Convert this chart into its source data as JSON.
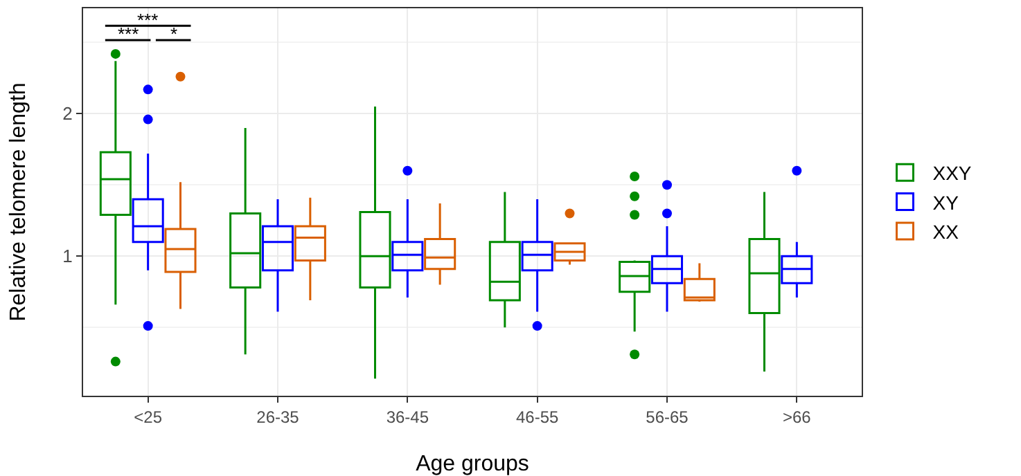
{
  "chart_data": {
    "type": "box",
    "xlabel": "Age groups",
    "ylabel": "Relative telomere length",
    "categories": [
      "<25",
      "26-35",
      "36-45",
      "46-55",
      "56-65",
      ">66"
    ],
    "ylim": [
      0.02,
      2.74
    ],
    "yticks": [
      1,
      2
    ],
    "grid": true,
    "legend": "right",
    "annotations": [
      "***",
      "***",
      "*"
    ],
    "series": [
      {
        "name": "XXY",
        "color": "#008b00",
        "boxes": [
          {
            "low": 0.66,
            "q1": 1.29,
            "median": 1.54,
            "q3": 1.73,
            "high": 2.37,
            "outliers": [
              2.42,
              0.26
            ]
          },
          {
            "low": 0.31,
            "q1": 0.78,
            "median": 1.02,
            "q3": 1.3,
            "high": 1.9
          },
          {
            "low": 0.14,
            "q1": 0.78,
            "median": 1.0,
            "q3": 1.31,
            "high": 2.05
          },
          {
            "low": 0.5,
            "q1": 0.69,
            "median": 0.82,
            "q3": 1.1,
            "high": 1.45
          },
          {
            "low": 0.47,
            "q1": 0.75,
            "median": 0.86,
            "q3": 0.96,
            "high": 0.97,
            "outliers": [
              1.56,
              1.42,
              1.29,
              0.31
            ]
          },
          {
            "low": 0.19,
            "q1": 0.6,
            "median": 0.88,
            "q3": 1.12,
            "high": 1.45
          }
        ]
      },
      {
        "name": "XY",
        "color": "#0000ff",
        "boxes": [
          {
            "low": 0.9,
            "q1": 1.1,
            "median": 1.21,
            "q3": 1.4,
            "high": 1.72,
            "outliers": [
              2.17,
              1.96,
              0.51
            ]
          },
          {
            "low": 0.61,
            "q1": 0.9,
            "median": 1.1,
            "q3": 1.21,
            "high": 1.4
          },
          {
            "low": 0.71,
            "q1": 0.9,
            "median": 1.01,
            "q3": 1.1,
            "high": 1.4,
            "outliers": [
              1.6
            ]
          },
          {
            "low": 0.61,
            "q1": 0.9,
            "median": 1.01,
            "q3": 1.1,
            "high": 1.4,
            "outliers": [
              0.51
            ]
          },
          {
            "low": 0.61,
            "q1": 0.81,
            "median": 0.91,
            "q3": 1.0,
            "high": 1.21,
            "outliers": [
              1.5,
              1.3
            ]
          },
          {
            "low": 0.71,
            "q1": 0.81,
            "median": 0.91,
            "q3": 1.0,
            "high": 1.1,
            "outliers": [
              1.6
            ]
          }
        ]
      },
      {
        "name": "XX",
        "color": "#d95f02",
        "boxes": [
          {
            "low": 0.63,
            "q1": 0.89,
            "median": 1.05,
            "q3": 1.19,
            "high": 1.52,
            "outliers": [
              2.26
            ]
          },
          {
            "low": 0.69,
            "q1": 0.97,
            "median": 1.13,
            "q3": 1.21,
            "high": 1.41
          },
          {
            "low": 0.8,
            "q1": 0.91,
            "median": 0.99,
            "q3": 1.12,
            "high": 1.37
          },
          {
            "low": 0.94,
            "q1": 0.97,
            "median": 1.03,
            "q3": 1.09,
            "high": 1.09,
            "outliers": [
              1.3
            ]
          },
          {
            "low": 0.68,
            "q1": 0.69,
            "median": 0.71,
            "q3": 0.84,
            "high": 0.95
          },
          null
        ]
      }
    ]
  }
}
